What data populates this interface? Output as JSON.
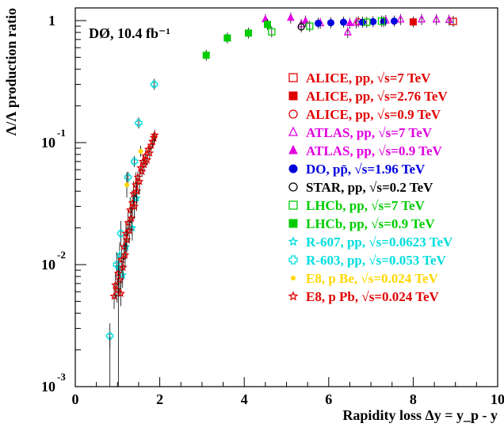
{
  "chart_data": {
    "type": "scatter",
    "x_scale": "linear",
    "y_scale": "log",
    "xlim": [
      0,
      10
    ],
    "ylim": [
      0.001,
      1.4
    ],
    "xlabel": "Rapidity loss Δy = y_p - y",
    "ylabel": "Λ/Λ production ratio",
    "annotation": "DØ, 10.4 fb⁻¹",
    "x_ticks": [
      "0",
      "2",
      "4",
      "6",
      "8",
      "10"
    ],
    "y_ticks": [
      {
        "value": 1,
        "label": "1"
      },
      {
        "value": 0.1,
        "label": "10",
        "exponent": "-1"
      },
      {
        "value": 0.01,
        "label": "10",
        "exponent": "-2"
      },
      {
        "value": 0.001,
        "label": "10",
        "exponent": "-3"
      }
    ],
    "legend_position": "right",
    "series": [
      {
        "name": "ALICE, pp, √s=7 TeV",
        "color": "#e00000",
        "marker": "square-open",
        "points": [
          [
            8.95,
            0.985
          ]
        ]
      },
      {
        "name": "ALICE, pp, √s=2.76 TeV",
        "color": "#e00000",
        "marker": "square-filled",
        "points": [
          [
            8.0,
            0.975
          ]
        ]
      },
      {
        "name": "ALICE, pp, √s=0.9 TeV",
        "color": "#e00000",
        "marker": "circle-open",
        "points": [
          [
            6.7,
            0.98
          ]
        ]
      },
      {
        "name": "ATLAS, pp, √s=7 TeV",
        "color": "#e000e0",
        "marker": "triangle-open",
        "points": [
          [
            5.35,
            0.93
          ],
          [
            5.8,
            0.95
          ],
          [
            6.45,
            0.8
          ],
          [
            6.65,
            0.96
          ],
          [
            7.35,
            1.0
          ],
          [
            7.7,
            1.02
          ],
          [
            8.2,
            1.02
          ],
          [
            8.55,
            1.02
          ],
          [
            8.85,
            1.01
          ]
        ]
      },
      {
        "name": "ATLAS, pp, √s=0.9 TeV",
        "color": "#e000e0",
        "marker": "triangle-filled",
        "points": [
          [
            4.5,
            1.02
          ],
          [
            5.1,
            1.05
          ],
          [
            5.45,
            0.99
          ],
          [
            6.5,
            0.95
          ]
        ]
      },
      {
        "name": "DO, pp̄, √s=1.96 TeV",
        "color": "#0000dd",
        "marker": "circle-filled",
        "points": [
          [
            5.75,
            0.95
          ],
          [
            6.05,
            0.96
          ],
          [
            6.35,
            0.97
          ],
          [
            6.8,
            0.97
          ],
          [
            7.05,
            0.98
          ],
          [
            7.3,
            0.98
          ],
          [
            7.55,
            0.99
          ]
        ]
      },
      {
        "name": "STAR, pp, √s=0.2 TeV",
        "color": "#000000",
        "marker": "circle-open",
        "points": [
          [
            5.35,
            0.89
          ]
        ]
      },
      {
        "name": "LHCb, pp, √s=7 TeV",
        "color": "#00cc00",
        "marker": "square-open",
        "points": [
          [
            4.65,
            0.81
          ],
          [
            5.55,
            0.9
          ],
          [
            6.9,
            0.97
          ],
          [
            7.25,
            0.99
          ]
        ]
      },
      {
        "name": "LHCb, pp, √s=0.9 TeV",
        "color": "#00cc00",
        "marker": "square-filled",
        "points": [
          [
            3.1,
            0.52
          ],
          [
            3.6,
            0.72
          ],
          [
            4.1,
            0.79
          ],
          [
            4.55,
            0.93
          ]
        ]
      },
      {
        "name": "R-607, pp, √s=0.0623 TeV",
        "color": "#00dddd",
        "marker": "star",
        "points": [
          [
            1.02,
            0.0095
          ],
          [
            1.05,
            0.012
          ],
          [
            1.12,
            0.0082
          ],
          [
            1.2,
            0.014
          ],
          [
            1.35,
            0.02
          ],
          [
            1.45,
            0.035
          ]
        ]
      },
      {
        "name": "R-603, pp, √s=0.053 TeV",
        "color": "#00dddd",
        "marker": "cross-open",
        "points": [
          [
            0.82,
            0.0026
          ],
          [
            0.98,
            0.01
          ],
          [
            1.08,
            0.018
          ],
          [
            1.25,
            0.052
          ],
          [
            1.5,
            0.145
          ],
          [
            1.87,
            0.3
          ],
          [
            1.4,
            0.07
          ]
        ]
      },
      {
        "name": "E8, p Be, √s=0.024 TeV",
        "color": "#ffd700",
        "marker": "dot",
        "points": [
          [
            1.22,
            0.045
          ],
          [
            1.55,
            0.085
          ]
        ]
      },
      {
        "name": "E8, p Pb, √s=0.024 TeV",
        "color": "#e00000",
        "marker": "star",
        "points": [
          [
            0.92,
            0.0055
          ],
          [
            0.95,
            0.0068
          ],
          [
            0.99,
            0.0062
          ],
          [
            1.02,
            0.0085
          ],
          [
            1.05,
            0.0075
          ],
          [
            1.08,
            0.0058
          ],
          [
            1.1,
            0.011
          ],
          [
            1.13,
            0.0095
          ],
          [
            1.15,
            0.014
          ],
          [
            1.18,
            0.012
          ],
          [
            1.2,
            0.018
          ],
          [
            1.22,
            0.016
          ],
          [
            1.25,
            0.022
          ],
          [
            1.28,
            0.019
          ],
          [
            1.3,
            0.028
          ],
          [
            1.33,
            0.024
          ],
          [
            1.35,
            0.032
          ],
          [
            1.38,
            0.038
          ],
          [
            1.4,
            0.03
          ],
          [
            1.43,
            0.045
          ],
          [
            1.46,
            0.04
          ],
          [
            1.48,
            0.052
          ],
          [
            1.52,
            0.048
          ],
          [
            1.55,
            0.062
          ],
          [
            1.58,
            0.058
          ],
          [
            1.6,
            0.07
          ],
          [
            1.63,
            0.066
          ],
          [
            1.66,
            0.078
          ],
          [
            1.7,
            0.072
          ],
          [
            1.73,
            0.088
          ],
          [
            1.76,
            0.082
          ],
          [
            1.8,
            0.095
          ],
          [
            1.83,
            0.102
          ],
          [
            1.86,
            0.11
          ],
          [
            1.88,
            0.115
          ]
        ]
      }
    ]
  }
}
